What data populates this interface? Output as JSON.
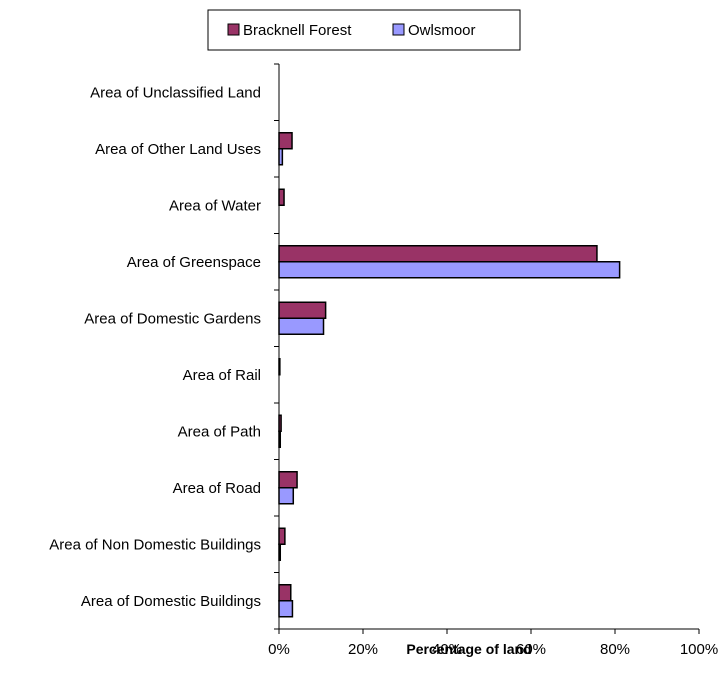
{
  "chart_data": {
    "type": "bar",
    "orientation": "horizontal",
    "categories": [
      "Area of Unclassified Land",
      "Area of Other Land Uses",
      "Area of Water",
      "Area of Greenspace",
      "Area of Domestic Gardens",
      "Area of Rail",
      "Area of Path",
      "Area of Road",
      "Area of Non Domestic Buildings",
      "Area of Domestic Buildings"
    ],
    "series": [
      {
        "name": "Bracknell Forest",
        "color": "#993366",
        "values": [
          0,
          3.1,
          1.2,
          75.7,
          11.1,
          0.2,
          0.5,
          4.3,
          1.4,
          2.8
        ]
      },
      {
        "name": "Owlsmoor",
        "color": "#9999FF",
        "values": [
          0,
          0.8,
          0,
          81.1,
          10.6,
          0,
          0.3,
          3.4,
          0.3,
          3.2
        ]
      }
    ],
    "xlabel": "Percentage of land",
    "xlim": [
      0,
      100
    ],
    "xticks": [
      "0%",
      "20%",
      "40%",
      "60%",
      "80%",
      "100%"
    ],
    "legend_position": "top",
    "grid": false
  }
}
